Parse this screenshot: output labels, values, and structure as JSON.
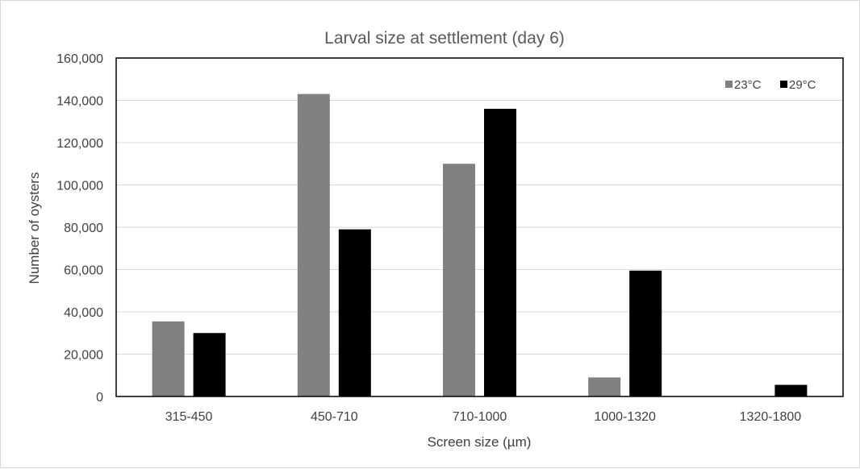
{
  "chart_data": {
    "type": "bar",
    "title": "Larval size at settlement (day 6)",
    "xlabel": "Screen size (µm)",
    "ylabel": "Number of oysters",
    "categories": [
      "315-450",
      "450-710",
      "710-1000",
      "1000-1320",
      "1320-1800"
    ],
    "series": [
      {
        "name": "23°C",
        "color": "#808080",
        "values": [
          35500,
          143000,
          110000,
          9000,
          0
        ]
      },
      {
        "name": "29°C",
        "color": "#000000",
        "values": [
          30000,
          79000,
          136000,
          59500,
          5500
        ]
      }
    ],
    "ylim": [
      0,
      160000
    ],
    "yticks": [
      "0",
      "20,000",
      "40,000",
      "60,000",
      "80,000",
      "100,000",
      "120,000",
      "140,000",
      "160,000"
    ],
    "grid": true,
    "legend_position": "top-right"
  }
}
